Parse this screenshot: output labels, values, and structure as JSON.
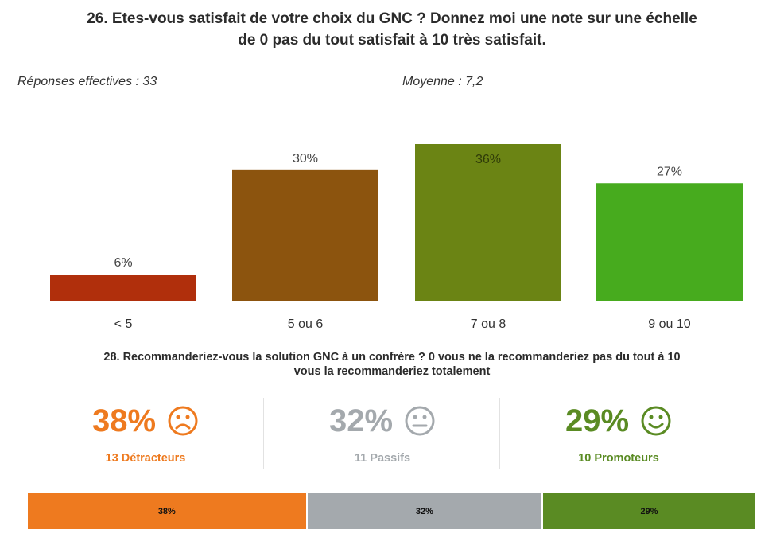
{
  "question1": {
    "title_line1": "26. Etes-vous satisfait de votre choix du GNC ? Donnez moi une note sur une échelle",
    "title_line2": "de 0 pas du tout satisfait à 10 très satisfait.",
    "responses": "Réponses effectives : 33",
    "average": "Moyenne : 7,2"
  },
  "chart_data": {
    "type": "bar",
    "categories": [
      "< 5",
      "5 ou 6",
      "7 ou 8",
      "9 ou 10"
    ],
    "values": [
      6,
      30,
      36,
      27
    ],
    "value_labels": [
      "6%",
      "30%",
      "36%",
      "27%"
    ],
    "colors": [
      "#b02f0c",
      "#8c540e",
      "#6b8414",
      "#47ab1e"
    ],
    "title": "",
    "xlabel": "",
    "ylabel": "",
    "ylim": [
      0,
      36
    ],
    "grid": false
  },
  "question2": {
    "title_line1": "28. Recommanderiez-vous la solution GNC à un confrère ? 0 vous ne la recommanderiez pas du tout à 10",
    "title_line2": "vous la recommanderiez totalement"
  },
  "nps": {
    "detractors": {
      "pct": "38%",
      "label": "13 Détracteurs",
      "color": "#ee7a1f",
      "icon": "sad-face-icon",
      "share": 38
    },
    "passives": {
      "pct": "32%",
      "label": "11 Passifs",
      "color": "#a4a9ad",
      "icon": "neutral-face-icon",
      "share": 32
    },
    "promoters": {
      "pct": "29%",
      "label": "10 Promoteurs",
      "color": "#5a8b23",
      "icon": "happy-face-icon",
      "share": 29
    }
  },
  "stacked_bar": {
    "detractors_label": "38%",
    "passives_label": "32%",
    "promoters_label": "29%"
  }
}
